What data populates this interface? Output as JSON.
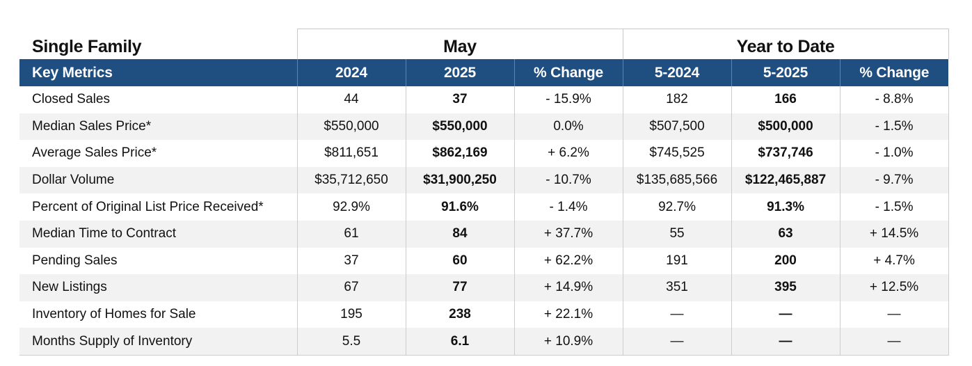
{
  "table": {
    "section_label": "Single Family",
    "group_may": "May",
    "group_ytd": "Year to Date",
    "headers": {
      "metric": "Key Metrics",
      "may_2024": "2024",
      "may_2025": "2025",
      "may_change": "% Change",
      "ytd_2024": "5-2024",
      "ytd_2025": "5-2025",
      "ytd_change": "% Change"
    },
    "rows": [
      {
        "label": "Closed Sales",
        "may_2024": "44",
        "may_2025": "37",
        "may_change": "- 15.9%",
        "ytd_2024": "182",
        "ytd_2025": "166",
        "ytd_change": "- 8.8%"
      },
      {
        "label": "Median Sales Price*",
        "may_2024": "$550,000",
        "may_2025": "$550,000",
        "may_change": "0.0%",
        "ytd_2024": "$507,500",
        "ytd_2025": "$500,000",
        "ytd_change": "- 1.5%"
      },
      {
        "label": "Average Sales Price*",
        "may_2024": "$811,651",
        "may_2025": "$862,169",
        "may_change": "+ 6.2%",
        "ytd_2024": "$745,525",
        "ytd_2025": "$737,746",
        "ytd_change": "- 1.0%"
      },
      {
        "label": "Dollar Volume",
        "may_2024": "$35,712,650",
        "may_2025": "$31,900,250",
        "may_change": "- 10.7%",
        "ytd_2024": "$135,685,566",
        "ytd_2025": "$122,465,887",
        "ytd_change": "- 9.7%"
      },
      {
        "label": "Percent of Original List Price Received*",
        "may_2024": "92.9%",
        "may_2025": "91.6%",
        "may_change": "- 1.4%",
        "ytd_2024": "92.7%",
        "ytd_2025": "91.3%",
        "ytd_change": "- 1.5%"
      },
      {
        "label": "Median Time to Contract",
        "may_2024": "61",
        "may_2025": "84",
        "may_change": "+ 37.7%",
        "ytd_2024": "55",
        "ytd_2025": "63",
        "ytd_change": "+ 14.5%"
      },
      {
        "label": "Pending Sales",
        "may_2024": "37",
        "may_2025": "60",
        "may_change": "+ 62.2%",
        "ytd_2024": "191",
        "ytd_2025": "200",
        "ytd_change": "+ 4.7%"
      },
      {
        "label": "New Listings",
        "may_2024": "67",
        "may_2025": "77",
        "may_change": "+ 14.9%",
        "ytd_2024": "351",
        "ytd_2025": "395",
        "ytd_change": "+ 12.5%"
      },
      {
        "label": "Inventory of Homes for Sale",
        "may_2024": "195",
        "may_2025": "238",
        "may_change": "+ 22.1%",
        "ytd_2024": "—",
        "ytd_2025": "—",
        "ytd_change": "—"
      },
      {
        "label": "Months Supply of Inventory",
        "may_2024": "5.5",
        "may_2025": "6.1",
        "may_change": "+ 10.9%",
        "ytd_2024": "—",
        "ytd_2025": "—",
        "ytd_change": "—"
      }
    ]
  },
  "colors": {
    "header_bg": "#1f4e80",
    "header_text": "#ffffff",
    "stripe_bg": "#f2f2f2"
  }
}
